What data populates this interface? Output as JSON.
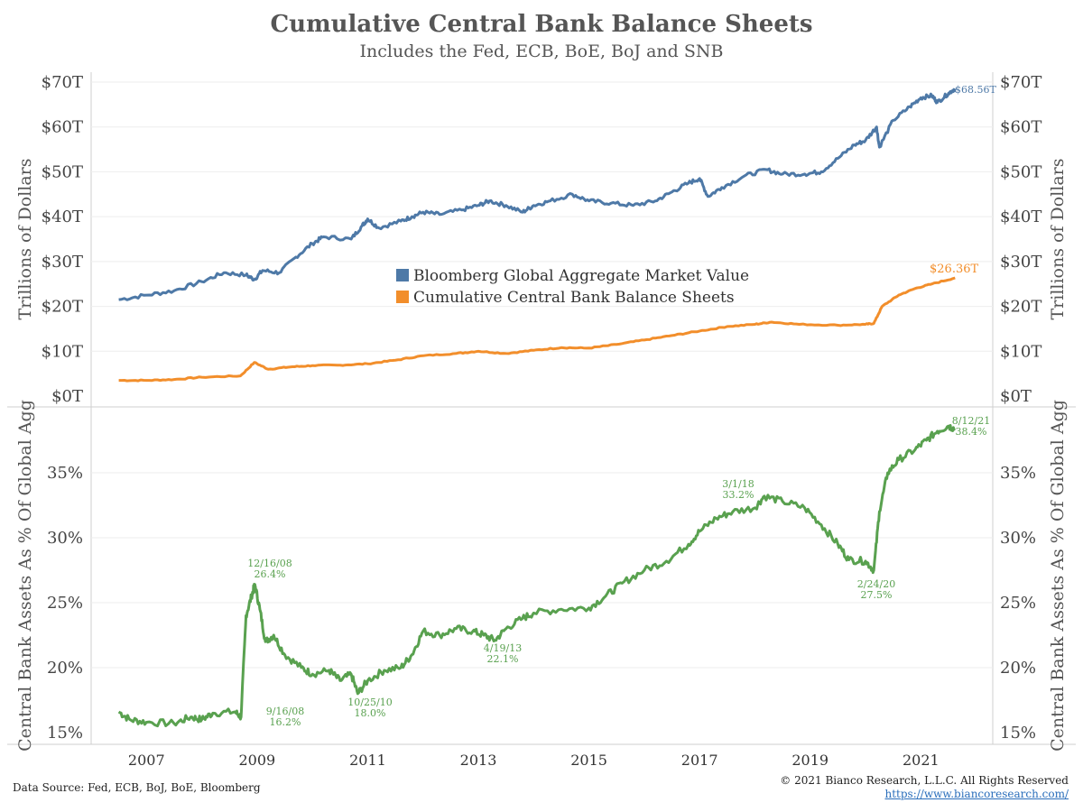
{
  "title": "Cumulative Central Bank Balance Sheets",
  "subtitle": "Includes the Fed, ECB, BoE, BoJ and SNB",
  "footer": {
    "source": "Data Source: Fed, ECB, BoJ, BoE, Bloomberg",
    "copyright": "© 2021 Bianco Research, L.L.C. All Rights Reserved",
    "url": "https://www.biancoresearch.com/"
  },
  "colors": {
    "blue": "#4e79a7",
    "orange": "#f28e2b",
    "green": "#59a14f"
  },
  "chart_data": [
    {
      "type": "line",
      "ylabel": "Trillions of Dollars",
      "ylim": [
        0,
        70
      ],
      "yticks": [
        "$0T",
        "$10T",
        "$20T",
        "$30T",
        "$40T",
        "$50T",
        "$60T",
        "$70T"
      ],
      "legend": [
        "Bloomberg Global Aggregate Market Value",
        "Cumulative Central Bank Balance Sheets"
      ],
      "series": [
        {
          "name": "Bloomberg Global Aggregate Market Value",
          "color": "#4e79a7",
          "end_label": "$68.56T",
          "points": [
            [
              2006.5,
              21.5
            ],
            [
              2007.0,
              22.5
            ],
            [
              2007.5,
              23.5
            ],
            [
              2008.0,
              25.5
            ],
            [
              2008.4,
              27.5
            ],
            [
              2008.8,
              27.0
            ],
            [
              2008.95,
              26.0
            ],
            [
              2009.1,
              28.0
            ],
            [
              2009.4,
              27.5
            ],
            [
              2009.7,
              31.0
            ],
            [
              2010.0,
              34.0
            ],
            [
              2010.2,
              35.5
            ],
            [
              2010.7,
              35.0
            ],
            [
              2010.9,
              38.0
            ],
            [
              2011.0,
              39.5
            ],
            [
              2011.2,
              37.5
            ],
            [
              2011.6,
              39.0
            ],
            [
              2011.8,
              40.0
            ],
            [
              2012.0,
              41.0
            ],
            [
              2012.3,
              40.5
            ],
            [
              2012.7,
              41.5
            ],
            [
              2013.0,
              42.5
            ],
            [
              2013.2,
              43.5
            ],
            [
              2013.5,
              42.5
            ],
            [
              2013.8,
              41.0
            ],
            [
              2014.0,
              42.5
            ],
            [
              2014.3,
              43.5
            ],
            [
              2014.7,
              45.0
            ],
            [
              2015.0,
              43.5
            ],
            [
              2015.4,
              43.0
            ],
            [
              2015.8,
              42.5
            ],
            [
              2016.2,
              43.5
            ],
            [
              2016.5,
              45.5
            ],
            [
              2016.8,
              47.5
            ],
            [
              2017.0,
              48.5
            ],
            [
              2017.15,
              44.5
            ],
            [
              2017.4,
              46.5
            ],
            [
              2017.8,
              49.0
            ],
            [
              2018.2,
              50.5
            ],
            [
              2018.5,
              49.5
            ],
            [
              2018.9,
              49.5
            ],
            [
              2019.2,
              50.0
            ],
            [
              2019.5,
              53.0
            ],
            [
              2019.8,
              56.0
            ],
            [
              2020.0,
              57.0
            ],
            [
              2020.2,
              60.0
            ],
            [
              2020.25,
              55.5
            ],
            [
              2020.5,
              61.5
            ],
            [
              2020.8,
              64.5
            ],
            [
              2021.0,
              66.5
            ],
            [
              2021.2,
              67.0
            ],
            [
              2021.3,
              65.5
            ],
            [
              2021.5,
              67.5
            ],
            [
              2021.62,
              68.56
            ]
          ]
        },
        {
          "name": "Cumulative Central Bank Balance Sheets",
          "color": "#f28e2b",
          "end_label": "$26.36T",
          "points": [
            [
              2006.5,
              3.5
            ],
            [
              2007.0,
              3.5
            ],
            [
              2007.5,
              3.7
            ],
            [
              2008.0,
              4.2
            ],
            [
              2008.7,
              4.5
            ],
            [
              2008.95,
              7.5
            ],
            [
              2009.2,
              6.0
            ],
            [
              2009.6,
              6.5
            ],
            [
              2010.0,
              6.8
            ],
            [
              2010.5,
              6.9
            ],
            [
              2011.0,
              7.2
            ],
            [
              2011.5,
              8.0
            ],
            [
              2012.0,
              9.0
            ],
            [
              2012.6,
              9.5
            ],
            [
              2013.0,
              10.0
            ],
            [
              2013.5,
              9.5
            ],
            [
              2014.0,
              10.2
            ],
            [
              2014.5,
              10.8
            ],
            [
              2015.0,
              10.7
            ],
            [
              2015.5,
              11.5
            ],
            [
              2016.0,
              12.5
            ],
            [
              2016.5,
              13.5
            ],
            [
              2017.0,
              14.5
            ],
            [
              2017.5,
              15.5
            ],
            [
              2018.0,
              16.0
            ],
            [
              2018.3,
              16.5
            ],
            [
              2018.8,
              16.0
            ],
            [
              2019.5,
              15.8
            ],
            [
              2020.0,
              16.0
            ],
            [
              2020.15,
              16.2
            ],
            [
              2020.3,
              20.0
            ],
            [
              2020.6,
              22.5
            ],
            [
              2020.9,
              24.0
            ],
            [
              2021.2,
              25.0
            ],
            [
              2021.62,
              26.36
            ]
          ]
        }
      ]
    },
    {
      "type": "line",
      "ylabel": "Central Bank Assets As % Of Global Agg",
      "ylim": [
        15,
        40
      ],
      "yticks": [
        "15%",
        "20%",
        "25%",
        "30%",
        "35%"
      ],
      "xticks": [
        "2007",
        "2009",
        "2011",
        "2013",
        "2015",
        "2017",
        "2019",
        "2021"
      ],
      "series": [
        {
          "name": "Central Bank Assets As % Of Global Agg",
          "color": "#59a14f",
          "points": [
            [
              2006.5,
              16.6
            ],
            [
              2006.7,
              16.0
            ],
            [
              2007.0,
              15.8
            ],
            [
              2007.5,
              15.7
            ],
            [
              2007.8,
              16.2
            ],
            [
              2008.0,
              16.0
            ],
            [
              2008.2,
              16.5
            ],
            [
              2008.6,
              16.6
            ],
            [
              2008.71,
              16.2
            ],
            [
              2008.8,
              24.0
            ],
            [
              2008.9,
              25.5
            ],
            [
              2008.96,
              26.4
            ],
            [
              2009.05,
              24.5
            ],
            [
              2009.15,
              22.0
            ],
            [
              2009.3,
              22.5
            ],
            [
              2009.5,
              21.0
            ],
            [
              2009.8,
              20.0
            ],
            [
              2010.0,
              19.5
            ],
            [
              2010.3,
              19.8
            ],
            [
              2010.5,
              19.0
            ],
            [
              2010.7,
              19.5
            ],
            [
              2010.82,
              18.0
            ],
            [
              2011.0,
              19.0
            ],
            [
              2011.3,
              19.8
            ],
            [
              2011.6,
              20.0
            ],
            [
              2011.8,
              21.0
            ],
            [
              2012.0,
              22.8
            ],
            [
              2012.3,
              22.5
            ],
            [
              2012.6,
              23.0
            ],
            [
              2012.9,
              22.8
            ],
            [
              2013.1,
              22.5
            ],
            [
              2013.3,
              22.1
            ],
            [
              2013.5,
              23.0
            ],
            [
              2013.8,
              23.8
            ],
            [
              2014.0,
              24.2
            ],
            [
              2014.5,
              24.5
            ],
            [
              2015.0,
              24.6
            ],
            [
              2015.3,
              25.5
            ],
            [
              2015.6,
              26.5
            ],
            [
              2016.0,
              27.5
            ],
            [
              2016.4,
              28.2
            ],
            [
              2016.8,
              29.5
            ],
            [
              2017.0,
              30.5
            ],
            [
              2017.3,
              31.5
            ],
            [
              2017.6,
              32.0
            ],
            [
              2018.0,
              32.3
            ],
            [
              2018.17,
              33.2
            ],
            [
              2018.5,
              32.8
            ],
            [
              2018.9,
              32.3
            ],
            [
              2019.2,
              31.0
            ],
            [
              2019.5,
              29.5
            ],
            [
              2019.7,
              28.3
            ],
            [
              2020.0,
              28.2
            ],
            [
              2020.15,
              27.5
            ],
            [
              2020.25,
              32.0
            ],
            [
              2020.4,
              35.0
            ],
            [
              2020.6,
              36.0
            ],
            [
              2020.9,
              36.8
            ],
            [
              2021.1,
              37.5
            ],
            [
              2021.3,
              38.2
            ],
            [
              2021.5,
              38.6
            ],
            [
              2021.61,
              38.4
            ]
          ]
        }
      ],
      "annotations": [
        {
          "date": "12/16/08",
          "value": "26.4%"
        },
        {
          "date": "9/16/08",
          "value": "16.2%"
        },
        {
          "date": "10/25/10",
          "value": "18.0%"
        },
        {
          "date": "4/19/13",
          "value": "22.1%"
        },
        {
          "date": "3/1/18",
          "value": "33.2%"
        },
        {
          "date": "2/24/20",
          "value": "27.5%"
        },
        {
          "date": "8/12/21",
          "value": "38.4%"
        }
      ]
    }
  ]
}
